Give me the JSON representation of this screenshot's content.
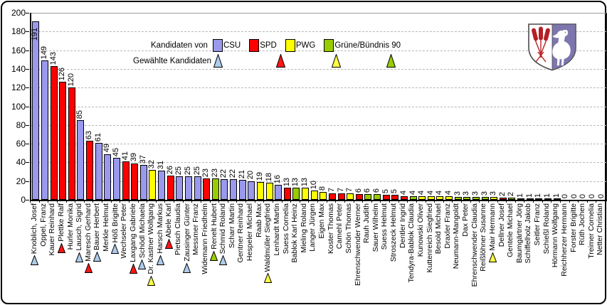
{
  "chart_data": {
    "type": "bar",
    "title": "",
    "xlabel": "",
    "ylabel": "",
    "ylim": [
      0,
      200
    ],
    "ytick_step": 20,
    "grid": "horizontal-dashed",
    "legend": {
      "position": "top-center",
      "candidates_label": "Kandidaten von",
      "elected_label": "Gewählte Kandidaten",
      "parties": [
        {
          "id": "CSU",
          "label": "CSU",
          "bar_color": "#9A99EE",
          "marker_color": "#AECBEB"
        },
        {
          "id": "SPD",
          "label": "SPD",
          "bar_color": "#FF0000",
          "marker_color": "#FF1515"
        },
        {
          "id": "PWG",
          "label": "PWG",
          "bar_color": "#FFFF00",
          "marker_color": "#FFFF44"
        },
        {
          "id": "GRUENE",
          "label": "Grüne/Bündnis 90",
          "bar_color": "#99CC00",
          "marker_color": "#99CC00"
        }
      ],
      "unknown_party_color": "#000000"
    },
    "candidates": [
      {
        "name": "Knoblich, Josef",
        "party": "CSU",
        "votes": 191,
        "elected": true
      },
      {
        "name": "Oppel, Franz",
        "party": "CSU",
        "votes": 149,
        "elected": false
      },
      {
        "name": "Kauer Reinhard",
        "party": "SPD",
        "votes": 143,
        "elected": false
      },
      {
        "name": "Plettke Ralf",
        "party": "SPD",
        "votes": 126,
        "elected": true
      },
      {
        "name": "Hurler Monika",
        "party": "SPD",
        "votes": 120,
        "elected": false
      },
      {
        "name": "Lausch, Sigrid",
        "party": "CSU",
        "votes": 85,
        "elected": true
      },
      {
        "name": "Maresch Gerhard",
        "party": "SPD",
        "votes": 63,
        "elected": true
      },
      {
        "name": "Bauer Herbert",
        "party": "CSU",
        "votes": 61,
        "elected": true
      },
      {
        "name": "Merkle Helmut",
        "party": "CSU",
        "votes": 49,
        "elected": false
      },
      {
        "name": "Höß Brigitte",
        "party": "CSU",
        "votes": 45,
        "elected": true
      },
      {
        "name": "Wechseler Peter",
        "party": "SPD",
        "votes": 41,
        "elected": false
      },
      {
        "name": "Laxgang Gabriele",
        "party": "SPD",
        "votes": 39,
        "elected": true
      },
      {
        "name": "Schödl Michaela",
        "party": "CSU",
        "votes": 37,
        "elected": true
      },
      {
        "name": "Dr. Kastner Wolfgang",
        "party": "PWG",
        "votes": 32,
        "elected": true
      },
      {
        "name": "Harsch Markus",
        "party": "CSU",
        "votes": 31,
        "elected": true
      },
      {
        "name": "Abele Karl",
        "party": "SPD",
        "votes": 26,
        "elected": true
      },
      {
        "name": "Pietsch Claudia",
        "party": "CSU",
        "votes": 25,
        "elected": false
      },
      {
        "name": "Zausinger Günter",
        "party": "CSU",
        "votes": 25,
        "elected": true
      },
      {
        "name": "Messmer Franz",
        "party": "CSU",
        "votes": 25,
        "elected": false
      },
      {
        "name": "Widemann Friedhelm",
        "party": "SPD",
        "votes": 23,
        "elected": false
      },
      {
        "name": "Renelt Hubert",
        "party": "GRUENE",
        "votes": 23,
        "elected": true
      },
      {
        "name": "Schmid Roland",
        "party": "CSU",
        "votes": 22,
        "elected": true
      },
      {
        "name": "Scharr Martin",
        "party": "CSU",
        "votes": 22,
        "elected": false
      },
      {
        "name": "Gentner Reinhard",
        "party": "CSU",
        "votes": 21,
        "elected": false
      },
      {
        "name": "Hespeler Michael",
        "party": "CSU",
        "votes": 20,
        "elected": false
      },
      {
        "name": "Raab Max",
        "party": "PWG",
        "votes": 19,
        "elected": false
      },
      {
        "name": "Waldmüller Siegfried",
        "party": "PWG",
        "votes": 18,
        "elected": true
      },
      {
        "name": "Lenhardt Martin",
        "party": "CSU",
        "votes": 16,
        "elected": false
      },
      {
        "name": "Suess Cornelia",
        "party": "SPD",
        "votes": 13,
        "elected": false
      },
      {
        "name": "Bablok Karl Heinz",
        "party": "GRUENE",
        "votes": 13,
        "elected": false
      },
      {
        "name": "Mieling Roland",
        "party": "PWG",
        "votes": 13,
        "elected": false
      },
      {
        "name": "Langer Jürgen",
        "party": "PWG",
        "votes": 10,
        "elected": false
      },
      {
        "name": "Eigen Max",
        "party": "PWG",
        "votes": 8,
        "elected": false
      },
      {
        "name": "Koster Thomas",
        "party": "SPD",
        "votes": 7,
        "elected": false
      },
      {
        "name": "Camehl Peter",
        "party": "SPD",
        "votes": 7,
        "elected": false
      },
      {
        "name": "Schön Thomas",
        "party": "PWG",
        "votes": 7,
        "elected": false
      },
      {
        "name": "Ehrenschwender Werner",
        "party": "SPD",
        "votes": 6,
        "elected": false
      },
      {
        "name": "Rauh Judith",
        "party": "GRUENE",
        "votes": 6,
        "elected": false
      },
      {
        "name": "Sauer Wilhelm",
        "party": "GRUENE",
        "votes": 6,
        "elected": false
      },
      {
        "name": "Suess Helmut",
        "party": "SPD",
        "votes": 5,
        "elected": false
      },
      {
        "name": "Stroszeck Helmut",
        "party": "SPD",
        "votes": 5,
        "elected": false
      },
      {
        "name": "Dentler Ingrid",
        "party": "SPD",
        "votes": 4,
        "elected": false
      },
      {
        "name": "Tendyra-Bablok Claudia",
        "party": "GRUENE",
        "votes": 4,
        "elected": false
      },
      {
        "name": "Kunowski Oliver",
        "party": "PWG",
        "votes": 4,
        "elected": false
      },
      {
        "name": "Kuttenreich Siegfried",
        "party": "PWG",
        "votes": 4,
        "elected": false
      },
      {
        "name": "Besold Michael",
        "party": "PWG",
        "votes": 4,
        "elected": false
      },
      {
        "name": "Draxler Franz",
        "party": "PWG",
        "votes": 4,
        "elected": false
      },
      {
        "name": "Neumann-Mangoldt",
        "party": "GRUENE",
        "votes": 3,
        "elected": false
      },
      {
        "name": "Dax Peter",
        "party": "GRUENE",
        "votes": 3,
        "elected": false
      },
      {
        "name": "Ehrenschwender Claudia",
        "party": "GRUENE",
        "votes": 3,
        "elected": false
      },
      {
        "name": "Reißlöhner Susanne",
        "party": "GRUENE",
        "votes": 3,
        "elected": false
      },
      {
        "name": "Mair Hermann",
        "party": "PWG",
        "votes": 3,
        "elected": true
      },
      {
        "name": "Dellner Josef",
        "party": "SPD",
        "votes": 2,
        "elected": false
      },
      {
        "name": "Gentele Michael",
        "party": "GRUENE",
        "votes": 2,
        "elected": false
      },
      {
        "name": "Baumgärtner Jörg",
        "party": "",
        "votes": 1,
        "elected": false
      },
      {
        "name": "Schiffelholz Jakob",
        "party": "",
        "votes": 1,
        "elected": false
      },
      {
        "name": "Seitler Franz",
        "party": "",
        "votes": 1,
        "elected": false
      },
      {
        "name": "Schießl Roland",
        "party": "",
        "votes": 1,
        "elected": false
      },
      {
        "name": "Hörmann Wolfgang",
        "party": "",
        "votes": 1,
        "elected": false
      },
      {
        "name": "Reichherzer Hermann",
        "party": "",
        "votes": 0,
        "elected": false
      },
      {
        "name": "Forster Brigitte",
        "party": "",
        "votes": 0,
        "elected": false
      },
      {
        "name": "Rüth Jochen",
        "party": "",
        "votes": 0,
        "elected": false
      },
      {
        "name": "Treimer Cornelia",
        "party": "",
        "votes": 0,
        "elected": false
      },
      {
        "name": "Netter Christian",
        "party": "",
        "votes": 0,
        "elected": false
      }
    ],
    "coat_of_arms": {
      "description": "municipal-coat-of-arms-shield-red-reeds-white-heron",
      "shield_left_color": "#FFFFFF",
      "shield_right_color": "#7C76AD",
      "reed_color": "#B52025"
    }
  }
}
